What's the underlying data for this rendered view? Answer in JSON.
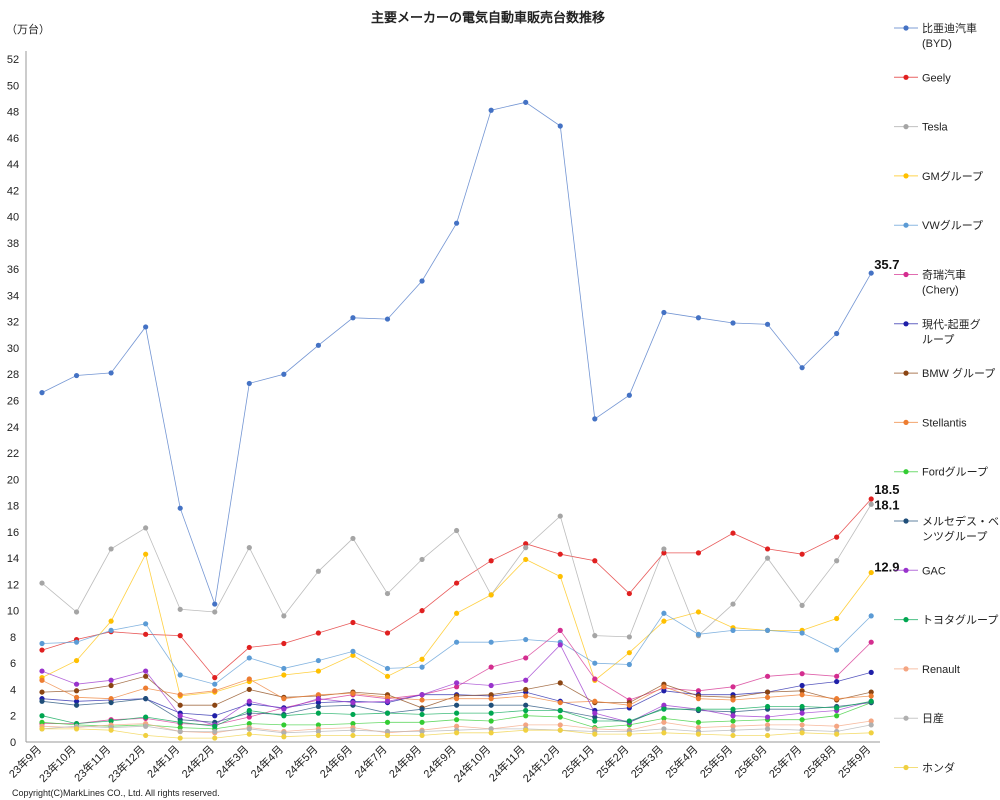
{
  "chart_data": {
    "type": "line",
    "title": "主要メーカーの電気自動車販売台数推移",
    "unit_label": "（万台）",
    "ylim": [
      0,
      52
    ],
    "y_ticks": [
      0,
      2,
      4,
      6,
      8,
      10,
      12,
      14,
      16,
      18,
      20,
      22,
      24,
      26,
      28,
      30,
      32,
      34,
      36,
      38,
      40,
      42,
      44,
      46,
      48,
      50,
      52
    ],
    "grid": false,
    "legend_position": "right",
    "categories": [
      "23年9月",
      "23年10月",
      "23年11月",
      "23年12月",
      "24年1月",
      "24年2月",
      "24年3月",
      "24年4月",
      "24年5月",
      "24年6月",
      "24年7月",
      "24年8月",
      "24年9月",
      "24年10月",
      "24年11月",
      "24年12月",
      "25年1月",
      "25年2月",
      "25年3月",
      "25年4月",
      "25年5月",
      "25年6月",
      "25年7月",
      "25年8月",
      "25年9月"
    ],
    "series": [
      {
        "name": "比亜迪汽車(BYD)",
        "legend_lines": [
          "比亜迪汽車",
          "(BYD)"
        ],
        "color": "#4472c4",
        "values": [
          26.6,
          27.9,
          28.1,
          31.6,
          17.8,
          10.5,
          27.3,
          28.0,
          30.2,
          32.3,
          32.2,
          35.1,
          39.5,
          48.1,
          48.7,
          46.9,
          24.6,
          26.4,
          32.7,
          32.3,
          31.9,
          31.8,
          28.5,
          31.1,
          35.7
        ]
      },
      {
        "name": "Geely",
        "legend_lines": [
          "Geely"
        ],
        "color": "#e02020",
        "values": [
          7.0,
          7.8,
          8.4,
          8.2,
          8.1,
          4.9,
          7.2,
          7.5,
          8.3,
          9.1,
          8.3,
          10.0,
          12.1,
          13.8,
          15.1,
          14.3,
          13.8,
          11.3,
          14.4,
          14.4,
          15.9,
          14.7,
          14.3,
          15.6,
          18.5
        ]
      },
      {
        "name": "Tesla",
        "legend_lines": [
          "Tesla"
        ],
        "color": "#a5a5a5",
        "values": [
          12.1,
          9.9,
          14.7,
          16.3,
          10.1,
          9.9,
          14.8,
          9.6,
          13.0,
          15.5,
          11.3,
          13.9,
          16.1,
          11.2,
          14.8,
          17.2,
          8.1,
          8.0,
          14.7,
          8.1,
          10.5,
          14.0,
          10.4,
          13.8,
          18.1
        ]
      },
      {
        "name": "GMグループ",
        "legend_lines": [
          "GMグループ"
        ],
        "color": "#ffc000",
        "values": [
          4.9,
          6.2,
          9.2,
          14.3,
          3.5,
          3.8,
          4.6,
          5.1,
          5.4,
          6.6,
          5.0,
          6.3,
          9.8,
          11.2,
          13.9,
          12.6,
          4.7,
          6.8,
          9.2,
          9.9,
          8.7,
          8.5,
          8.5,
          9.4,
          12.9
        ]
      },
      {
        "name": "VWグループ",
        "legend_lines": [
          "VWグループ"
        ],
        "color": "#5b9bd5",
        "values": [
          7.5,
          7.6,
          8.5,
          9.0,
          5.1,
          4.4,
          6.4,
          5.6,
          6.2,
          6.9,
          5.6,
          5.7,
          7.6,
          7.6,
          7.8,
          7.6,
          6.0,
          5.9,
          9.8,
          8.2,
          8.5,
          8.5,
          8.3,
          7.0,
          9.6
        ]
      },
      {
        "name": "奇瑞汽車(Chery)",
        "legend_lines": [
          "奇瑞汽車",
          "(Chery)"
        ],
        "color": "#d42d8f",
        "values": [
          1.4,
          1.4,
          1.7,
          1.8,
          1.4,
          1.3,
          1.9,
          2.6,
          3.2,
          3.6,
          3.3,
          3.6,
          4.2,
          5.7,
          6.4,
          8.5,
          4.8,
          3.2,
          4.1,
          3.9,
          4.2,
          5.0,
          5.2,
          5.0,
          7.6
        ]
      },
      {
        "name": "現代-起亜グループ",
        "legend_lines": [
          "現代-起亜グ",
          "ループ"
        ],
        "color": "#1f1fa8",
        "values": [
          3.3,
          3.1,
          3.2,
          3.3,
          2.2,
          2.0,
          2.9,
          2.6,
          3.0,
          3.1,
          3.0,
          3.6,
          3.6,
          3.5,
          3.8,
          3.1,
          2.4,
          2.6,
          3.9,
          3.6,
          3.6,
          3.8,
          4.3,
          4.6,
          5.3
        ]
      },
      {
        "name": "BMW グループ",
        "legend_lines": [
          "BMW グループ"
        ],
        "color": "#8b4513",
        "values": [
          3.8,
          3.9,
          4.3,
          5.0,
          2.8,
          2.8,
          4.0,
          3.4,
          3.5,
          3.8,
          3.6,
          2.6,
          3.5,
          3.6,
          4.0,
          4.5,
          3.0,
          3.0,
          4.4,
          3.5,
          3.4,
          3.8,
          3.9,
          3.2,
          3.8
        ]
      },
      {
        "name": "Stellantis",
        "legend_lines": [
          "Stellantis"
        ],
        "color": "#ed7d31",
        "values": [
          4.7,
          3.4,
          3.3,
          4.1,
          3.6,
          3.9,
          4.8,
          3.3,
          3.6,
          3.7,
          3.4,
          3.2,
          3.3,
          3.3,
          3.5,
          3.0,
          3.1,
          2.8,
          4.2,
          3.3,
          3.2,
          3.4,
          3.6,
          3.3,
          3.5
        ]
      },
      {
        "name": "Fordグループ",
        "legend_lines": [
          "Fordグループ"
        ],
        "color": "#33cc33",
        "values": [
          1.5,
          1.3,
          1.2,
          1.3,
          1.1,
          1.0,
          1.4,
          1.3,
          1.3,
          1.4,
          1.5,
          1.5,
          1.7,
          1.6,
          2.0,
          1.9,
          1.1,
          1.3,
          1.8,
          1.5,
          1.6,
          1.7,
          1.7,
          2.0,
          3.0
        ]
      },
      {
        "name": "メルセデス・ベンツグループ",
        "legend_lines": [
          "メルセデス・ベ",
          "ンツグループ"
        ],
        "color": "#1f4e79",
        "values": [
          3.1,
          2.8,
          3.0,
          3.3,
          1.7,
          1.5,
          2.2,
          2.1,
          2.7,
          2.8,
          2.2,
          2.5,
          2.8,
          2.8,
          2.8,
          2.4,
          1.9,
          1.5,
          2.6,
          2.4,
          2.3,
          2.5,
          2.5,
          2.7,
          3.0
        ]
      },
      {
        "name": "GAC",
        "legend_lines": [
          "GAC"
        ],
        "color": "#9933cc",
        "values": [
          5.4,
          4.4,
          4.7,
          5.4,
          2.0,
          1.3,
          3.1,
          2.5,
          3.3,
          3.0,
          3.1,
          3.6,
          4.5,
          4.3,
          4.7,
          7.4,
          2.2,
          1.5,
          2.8,
          2.5,
          2.0,
          1.9,
          2.2,
          2.4,
          3.1
        ]
      },
      {
        "name": "トヨタグループ",
        "legend_lines": [
          "トヨタグループ"
        ],
        "color": "#00a651",
        "values": [
          2.0,
          1.4,
          1.6,
          1.9,
          1.5,
          1.2,
          2.4,
          2.0,
          2.2,
          2.1,
          2.2,
          2.1,
          2.2,
          2.2,
          2.4,
          2.4,
          1.6,
          1.6,
          2.5,
          2.5,
          2.5,
          2.7,
          2.7,
          2.6,
          3.1
        ]
      },
      {
        "name": "Renault",
        "legend_lines": [
          "Renault"
        ],
        "color": "#f4a582",
        "values": [
          1.2,
          1.1,
          1.3,
          1.4,
          0.8,
          0.7,
          1.1,
          0.8,
          1.0,
          1.1,
          0.7,
          0.9,
          1.2,
          1.0,
          1.3,
          1.3,
          1.0,
          0.9,
          1.5,
          1.1,
          1.2,
          1.3,
          1.3,
          1.2,
          1.6
        ]
      },
      {
        "name": "日産",
        "legend_lines": [
          "日産"
        ],
        "color": "#b0b0b0",
        "values": [
          1.0,
          1.2,
          1.1,
          1.2,
          0.8,
          0.8,
          1.0,
          0.7,
          0.8,
          0.9,
          0.8,
          0.8,
          0.9,
          1.0,
          1.0,
          0.9,
          0.8,
          0.8,
          1.0,
          0.8,
          0.9,
          1.0,
          0.9,
          0.8,
          1.3
        ]
      },
      {
        "name": "ホンダ",
        "legend_lines": [
          "ホンダ"
        ],
        "color": "#f0d040",
        "values": [
          1.0,
          1.0,
          0.9,
          0.5,
          0.3,
          0.3,
          0.6,
          0.4,
          0.5,
          0.5,
          0.5,
          0.5,
          0.7,
          0.7,
          0.9,
          0.9,
          0.6,
          0.6,
          0.7,
          0.6,
          0.5,
          0.5,
          0.7,
          0.6,
          0.7
        ]
      }
    ],
    "annotations": [
      {
        "series": "比亜迪汽車(BYD)",
        "category": "25年9月",
        "label": "35.7"
      },
      {
        "series": "Geely",
        "category": "25年9月",
        "label": "18.5"
      },
      {
        "series": "Tesla",
        "category": "25年9月",
        "label": "18.1"
      },
      {
        "series": "GMグループ",
        "category": "25年9月",
        "label": "12.9"
      }
    ]
  },
  "copyright": "Copyright(C)MarkLines CO., Ltd. All rights reserved."
}
